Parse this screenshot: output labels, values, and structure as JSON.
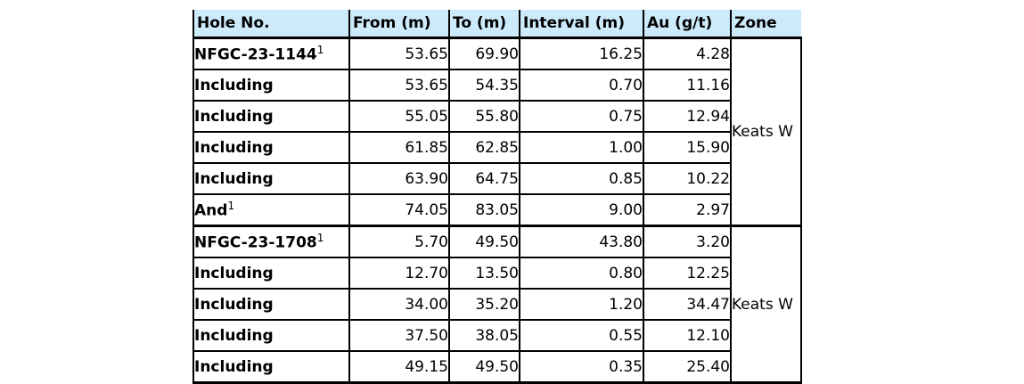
{
  "colors": {
    "header_bg": "#CDEAFB",
    "border": "#000000",
    "text": "#000000"
  },
  "table": {
    "columns": [
      {
        "key": "hole",
        "label": "Hole No."
      },
      {
        "key": "from",
        "label": "From (m)"
      },
      {
        "key": "to",
        "label": "To (m)"
      },
      {
        "key": "interval",
        "label": "Interval (m)"
      },
      {
        "key": "au",
        "label": "Au (g/t)"
      },
      {
        "key": "zone",
        "label": "Zone"
      }
    ],
    "groups": [
      {
        "zone": "Keats W",
        "rows": [
          {
            "hole": "NFGC-23-1144",
            "sup": "1",
            "from": "53.65",
            "to": "69.90",
            "interval": "16.25",
            "au": "4.28"
          },
          {
            "hole": "Including",
            "from": "53.65",
            "to": "54.35",
            "interval": "0.70",
            "au": "11.16"
          },
          {
            "hole": "Including",
            "from": "55.05",
            "to": "55.80",
            "interval": "0.75",
            "au": "12.94"
          },
          {
            "hole": "Including",
            "from": "61.85",
            "to": "62.85",
            "interval": "1.00",
            "au": "15.90"
          },
          {
            "hole": "Including",
            "from": "63.90",
            "to": "64.75",
            "interval": "0.85",
            "au": "10.22"
          },
          {
            "hole": "And",
            "sup": "1",
            "from": "74.05",
            "to": "83.05",
            "interval": "9.00",
            "au": "2.97"
          }
        ]
      },
      {
        "zone": "Keats W",
        "rows": [
          {
            "hole": "NFGC-23-1708",
            "sup": "1",
            "from": "5.70",
            "to": "49.50",
            "interval": "43.80",
            "au": "3.20"
          },
          {
            "hole": "Including",
            "from": "12.70",
            "to": "13.50",
            "interval": "0.80",
            "au": "12.25"
          },
          {
            "hole": "Including",
            "from": "34.00",
            "to": "35.20",
            "interval": "1.20",
            "au": "34.47"
          },
          {
            "hole": "Including",
            "from": "37.50",
            "to": "38.05",
            "interval": "0.55",
            "au": "12.10"
          },
          {
            "hole": "Including",
            "from": "49.15",
            "to": "49.50",
            "interval": "0.35",
            "au": "25.40"
          }
        ]
      }
    ]
  }
}
